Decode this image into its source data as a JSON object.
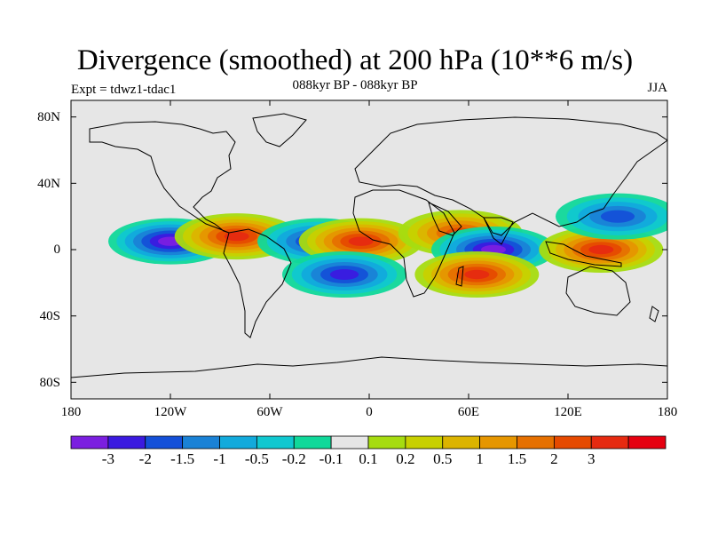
{
  "title": "Divergence (smoothed) at 200 hPa (10**6 m/s)",
  "subtitle": "088kyr BP - 088kyr BP",
  "left_label": "Expt = tdwz1-tdac1",
  "right_label": "JJA",
  "lat_labels": [
    "80N",
    "40N",
    "0",
    "40S",
    "80S"
  ],
  "lon_labels": [
    "180",
    "120W",
    "60W",
    "0",
    "60E",
    "120E",
    "180"
  ],
  "colorbar": {
    "colors": [
      "#7b1fe0",
      "#3b1ae0",
      "#1450d8",
      "#1a82d6",
      "#12aadc",
      "#10c8d0",
      "#10d89a",
      "#e6e6e6",
      "#a6dc10",
      "#c8d000",
      "#dcb400",
      "#e69600",
      "#e67000",
      "#e64a00",
      "#e62a10",
      "#e60010"
    ],
    "labels": [
      "-3",
      "-2",
      "-1.5",
      "-1",
      "-0.5",
      "-0.2",
      "-0.1",
      "0.1",
      "0.2",
      "0.5",
      "1",
      "1.5",
      "2",
      "3"
    ]
  },
  "map": {
    "projection": "cylindrical equidistant",
    "lon_range": [
      -180,
      180
    ],
    "lat_range": [
      -90,
      90
    ],
    "features": [
      {
        "name": "tropical-west-pacific-convergence",
        "lon": -120,
        "lat": 5,
        "level": -3
      },
      {
        "name": "central-america-divergence",
        "lon": -80,
        "lat": 8,
        "level": 3
      },
      {
        "name": "tropical-atlantic-convergence",
        "lon": -30,
        "lat": 5,
        "level": -2
      },
      {
        "name": "west-africa-divergence",
        "lon": -5,
        "lat": 5,
        "level": 3
      },
      {
        "name": "south-atlantic-convergence",
        "lon": -15,
        "lat": -15,
        "level": -2
      },
      {
        "name": "arabian-sea-divergence",
        "lon": 55,
        "lat": 10,
        "level": 2
      },
      {
        "name": "indian-ocean-convergence",
        "lon": 75,
        "lat": 0,
        "level": -3
      },
      {
        "name": "south-indian-ocean-divergence",
        "lon": 65,
        "lat": -15,
        "level": 3
      },
      {
        "name": "west-pacific-divergence",
        "lon": 140,
        "lat": 0,
        "level": 3
      },
      {
        "name": "north-pacific-convergence",
        "lon": 150,
        "lat": 20,
        "level": -1.5
      }
    ]
  }
}
